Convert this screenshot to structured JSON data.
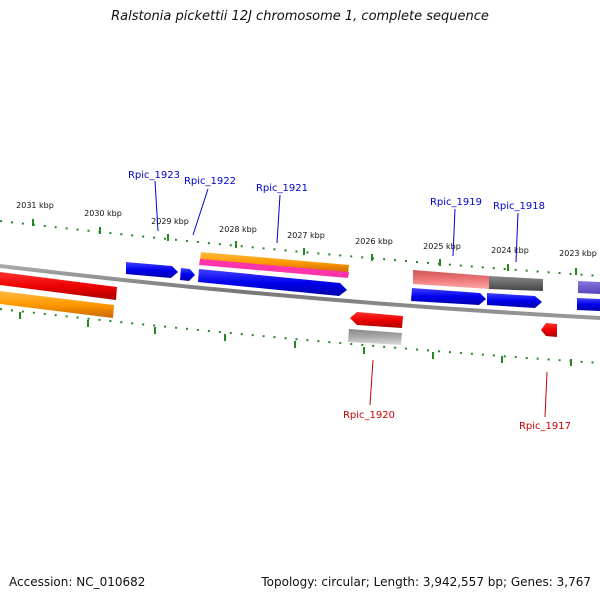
{
  "title": "Ralstonia pickettii 12J chromosome 1, complete sequence",
  "footer": {
    "accession": "Accession: NC_010682",
    "summary": "Topology: circular; Length: 3,942,557 bp; Genes: 3,767"
  },
  "ticks": [
    "2031 kbp",
    "2030 kbp",
    "2029 kbp",
    "2028 kbp",
    "2027 kbp",
    "2026 kbp",
    "2025 kbp",
    "2024 kbp",
    "2023 kbp"
  ],
  "genes": {
    "forward": [
      "Rpic_1923",
      "Rpic_1922",
      "Rpic_1921",
      "Rpic_1919",
      "Rpic_1918"
    ],
    "reverse": [
      "Rpic_1920",
      "Rpic_1917"
    ]
  },
  "colors": {
    "forward_label": "#0000cc",
    "reverse_label": "#cc0000",
    "gene_blue": "#0000ee",
    "gene_red": "#ee0000",
    "gene_orange": "#ff9900",
    "gene_magenta": "#ff33aa",
    "gene_pink": "#ee7777",
    "gene_gray": "#666666",
    "gene_lightgray": "#aaaaaa",
    "gene_purple": "#6655cc",
    "backbone": "#808080",
    "tick": "#228822"
  }
}
